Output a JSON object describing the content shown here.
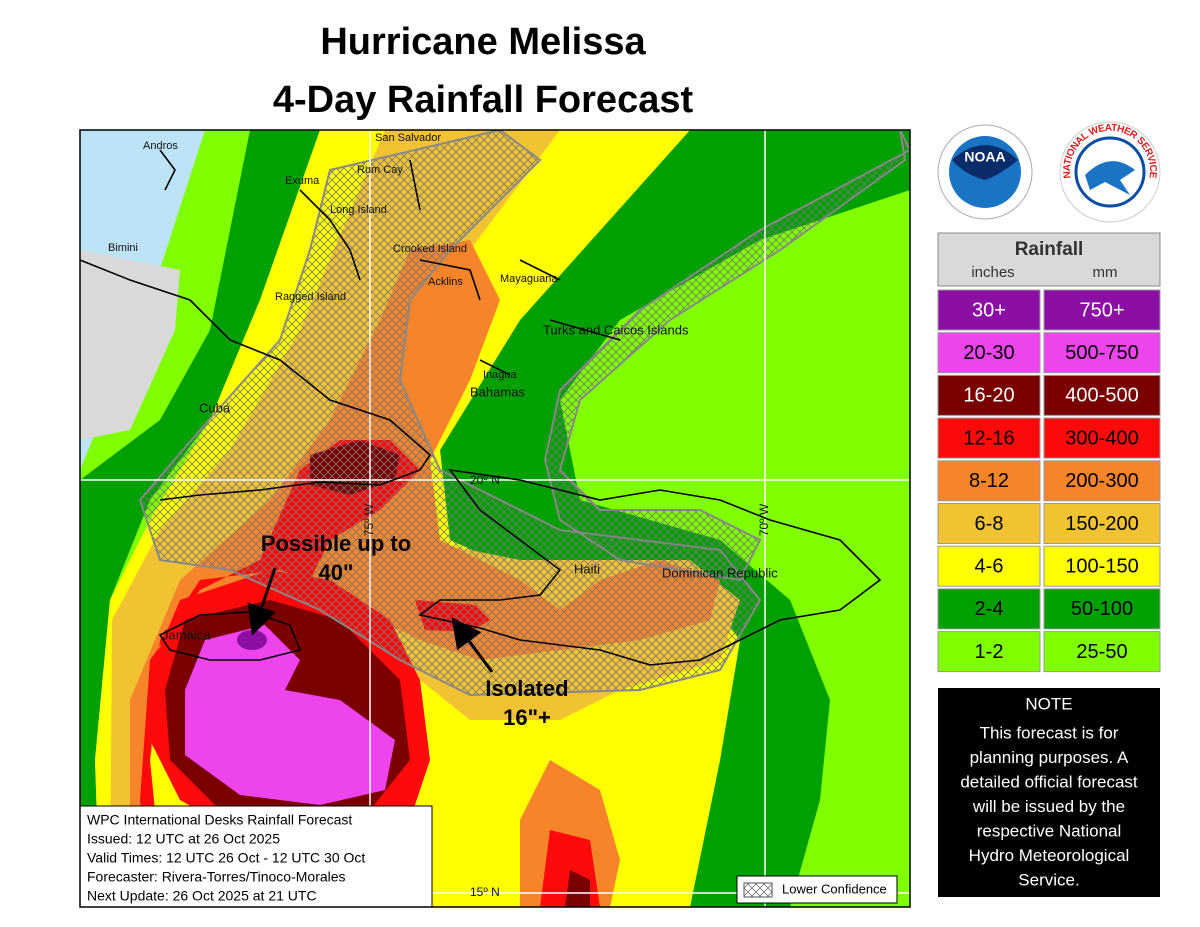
{
  "title": [
    "Hurricane Melissa",
    "4-Day Rainfall Forecast"
  ],
  "logos": {
    "noaa": "NOAA",
    "nws": "NATIONAL WEATHER SERVICE"
  },
  "map": {
    "places": [
      "San Salvador",
      "Andros",
      "Rum Cay",
      "Exuma",
      "Long Island",
      "Bimini",
      "Crooked Island",
      "Acklins",
      "Mayaguana",
      "Ragged Island",
      "Turks and Caicos Islands",
      "Inagua",
      "Bahamas",
      "Cuba",
      "Haiti",
      "Dominican Republic",
      "Jamaica"
    ],
    "gridlines": [
      "20º N",
      "15º N",
      "75º W",
      "70º W"
    ],
    "annotations": [
      [
        "Possible up to",
        "40\""
      ],
      [
        "Isolated",
        "16\"+"
      ]
    ],
    "info": [
      "WPC International Desks Rainfall Forecast",
      "Issued: 12 UTC at 26 Oct 2025",
      "Valid Times: 12 UTC 26 Oct - 12 UTC 30 Oct",
      "Forecaster: Rivera-Torres/Tinoco-Morales",
      "Next Update: 26 Oct 2025 at 21 UTC"
    ],
    "lower_confidence": "Lower Confidence"
  },
  "legend": {
    "title": "Rainfall",
    "units": [
      "inches",
      "mm"
    ],
    "rows": [
      {
        "inches": "30+",
        "mm": "750+",
        "color": "#8b0fa3",
        "text_color": "#ffffff"
      },
      {
        "inches": "20-30",
        "mm": "500-750",
        "color": "#ee44ee",
        "text_color": "#000000"
      },
      {
        "inches": "16-20",
        "mm": "400-500",
        "color": "#7a0000",
        "text_color": "#ffffff"
      },
      {
        "inches": "12-16",
        "mm": "300-400",
        "color": "#ff0a0a",
        "text_color": "#000000"
      },
      {
        "inches": "8-12",
        "mm": "200-300",
        "color": "#f5842a",
        "text_color": "#000000"
      },
      {
        "inches": "6-8",
        "mm": "150-200",
        "color": "#f1c232",
        "text_color": "#000000"
      },
      {
        "inches": "4-6",
        "mm": "100-150",
        "color": "#ffff00",
        "text_color": "#000000"
      },
      {
        "inches": "2-4",
        "mm": "50-100",
        "color": "#00a000",
        "text_color": "#000000"
      },
      {
        "inches": "1-2",
        "mm": "25-50",
        "color": "#80ff00",
        "text_color": "#000000"
      }
    ]
  },
  "note": {
    "title": "NOTE",
    "lines": [
      "This forecast is for",
      "planning purposes. A",
      "detailed official forecast",
      "will be issued by the",
      "respective National",
      "Hydro Meteorological",
      "Service."
    ]
  }
}
